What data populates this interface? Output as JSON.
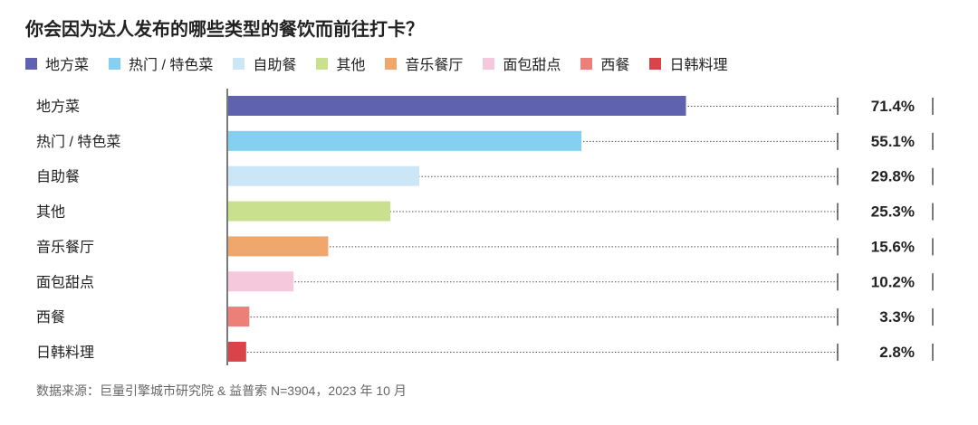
{
  "chart_data": {
    "type": "bar",
    "orientation": "horizontal",
    "title": "你会因为达人发布的哪些类型的餐饮而前往打卡？",
    "categories": [
      "地方菜",
      "热门 / 特色菜",
      "自助餐",
      "其他",
      "音乐餐厅",
      "面包甜点",
      "西餐",
      "日韩料理"
    ],
    "values": [
      71.4,
      55.1,
      29.8,
      25.3,
      15.6,
      10.2,
      3.3,
      2.8
    ],
    "value_labels": [
      "71.4%",
      "55.1%",
      "29.8%",
      "25.3%",
      "15.6%",
      "10.2%",
      "3.3%",
      "2.8%"
    ],
    "colors": [
      "#5f62ae",
      "#85d0f0",
      "#cbe6f7",
      "#c9e08e",
      "#f0a76c",
      "#f5c8dc",
      "#ec8079",
      "#d9434a"
    ],
    "xlim": [
      0,
      100
    ],
    "unit": "%",
    "legend": [
      "地方菜",
      "热门 / 特色菜",
      "自助餐",
      "其他",
      "音乐餐厅",
      "面包甜点",
      "西餐",
      "日韩料理"
    ],
    "legend_position": "top-left"
  },
  "source": "数据来源：巨量引擎城市研究院 & 益普索 N=3904，2023 年 10 月"
}
